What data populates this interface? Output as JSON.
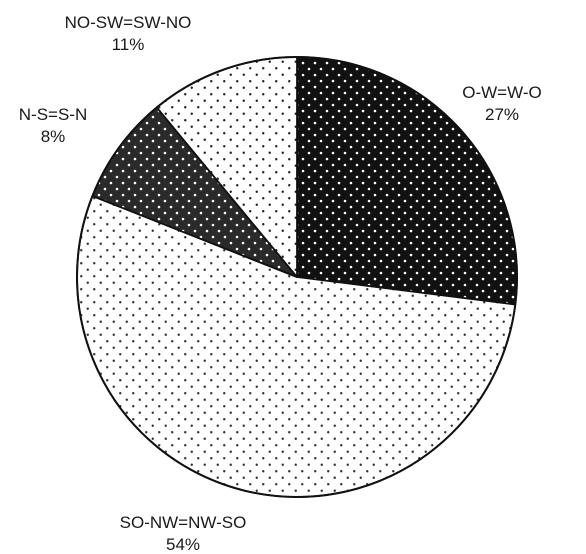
{
  "chart_data": {
    "type": "pie",
    "title": "",
    "start_angle_deg": 0,
    "direction": "clockwise",
    "slices": [
      {
        "label": "O-W=W-O",
        "value": 27,
        "value_label": "27%",
        "fill_base": "#111111",
        "dot_color": "#ffffff",
        "label_position": "right"
      },
      {
        "label": "SO-NW=NW-SO",
        "value": 54,
        "value_label": "54%",
        "fill_base": "#ffffff",
        "dot_color": "#333333",
        "label_position": "bottom"
      },
      {
        "label": "N-S=S-N",
        "value": 8,
        "value_label": "8%",
        "fill_base": "#2a2a2a",
        "dot_color": "#ffffff",
        "label_position": "left"
      },
      {
        "label": "NO-SW=SW-NO",
        "value": 11,
        "value_label": "11%",
        "fill_base": "#ffffff",
        "dot_color": "#222222",
        "label_position": "top-left"
      }
    ]
  }
}
